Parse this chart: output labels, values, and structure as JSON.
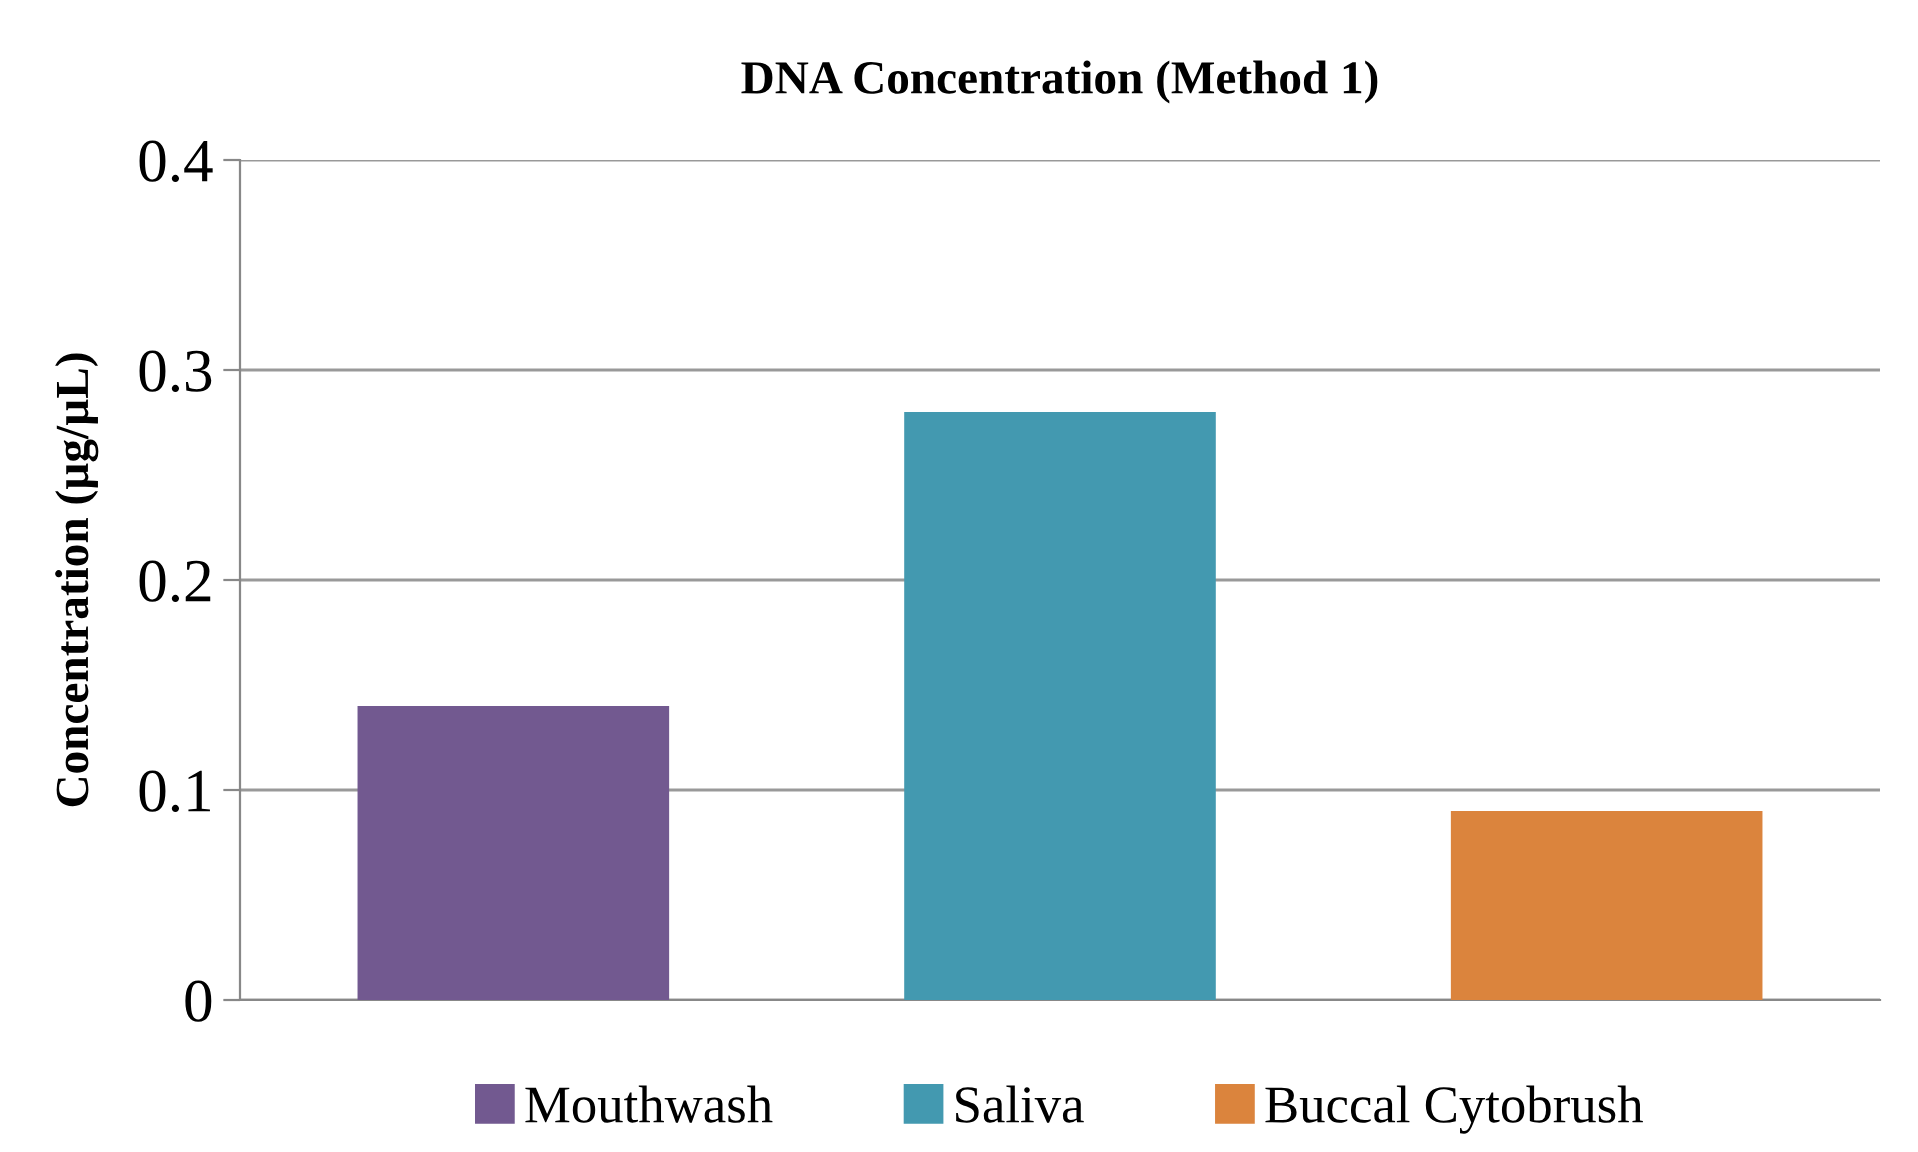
{
  "chart_data": {
    "type": "bar",
    "title": "DNA Concentration (Method 1)",
    "ylabel": "Concentration (µg/µL)",
    "categories": [
      null,
      null,
      null
    ],
    "series": [
      {
        "name": "Mouthwash",
        "color": "#725990",
        "values": [
          0.14,
          null,
          null
        ]
      },
      {
        "name": "Saliva",
        "color": "#4399b0",
        "values": [
          null,
          0.28,
          null
        ]
      },
      {
        "name": "Buccal Cytobrush",
        "color": "#db843d",
        "values": [
          null,
          null,
          0.09
        ]
      }
    ],
    "ylim": [
      0,
      0.4
    ],
    "yticks": [
      {
        "value": 0,
        "label": "0"
      },
      0.1,
      0.2,
      0.3,
      0.4
    ],
    "grid": "y",
    "legend": "bottom",
    "tick_labels": "y"
  }
}
